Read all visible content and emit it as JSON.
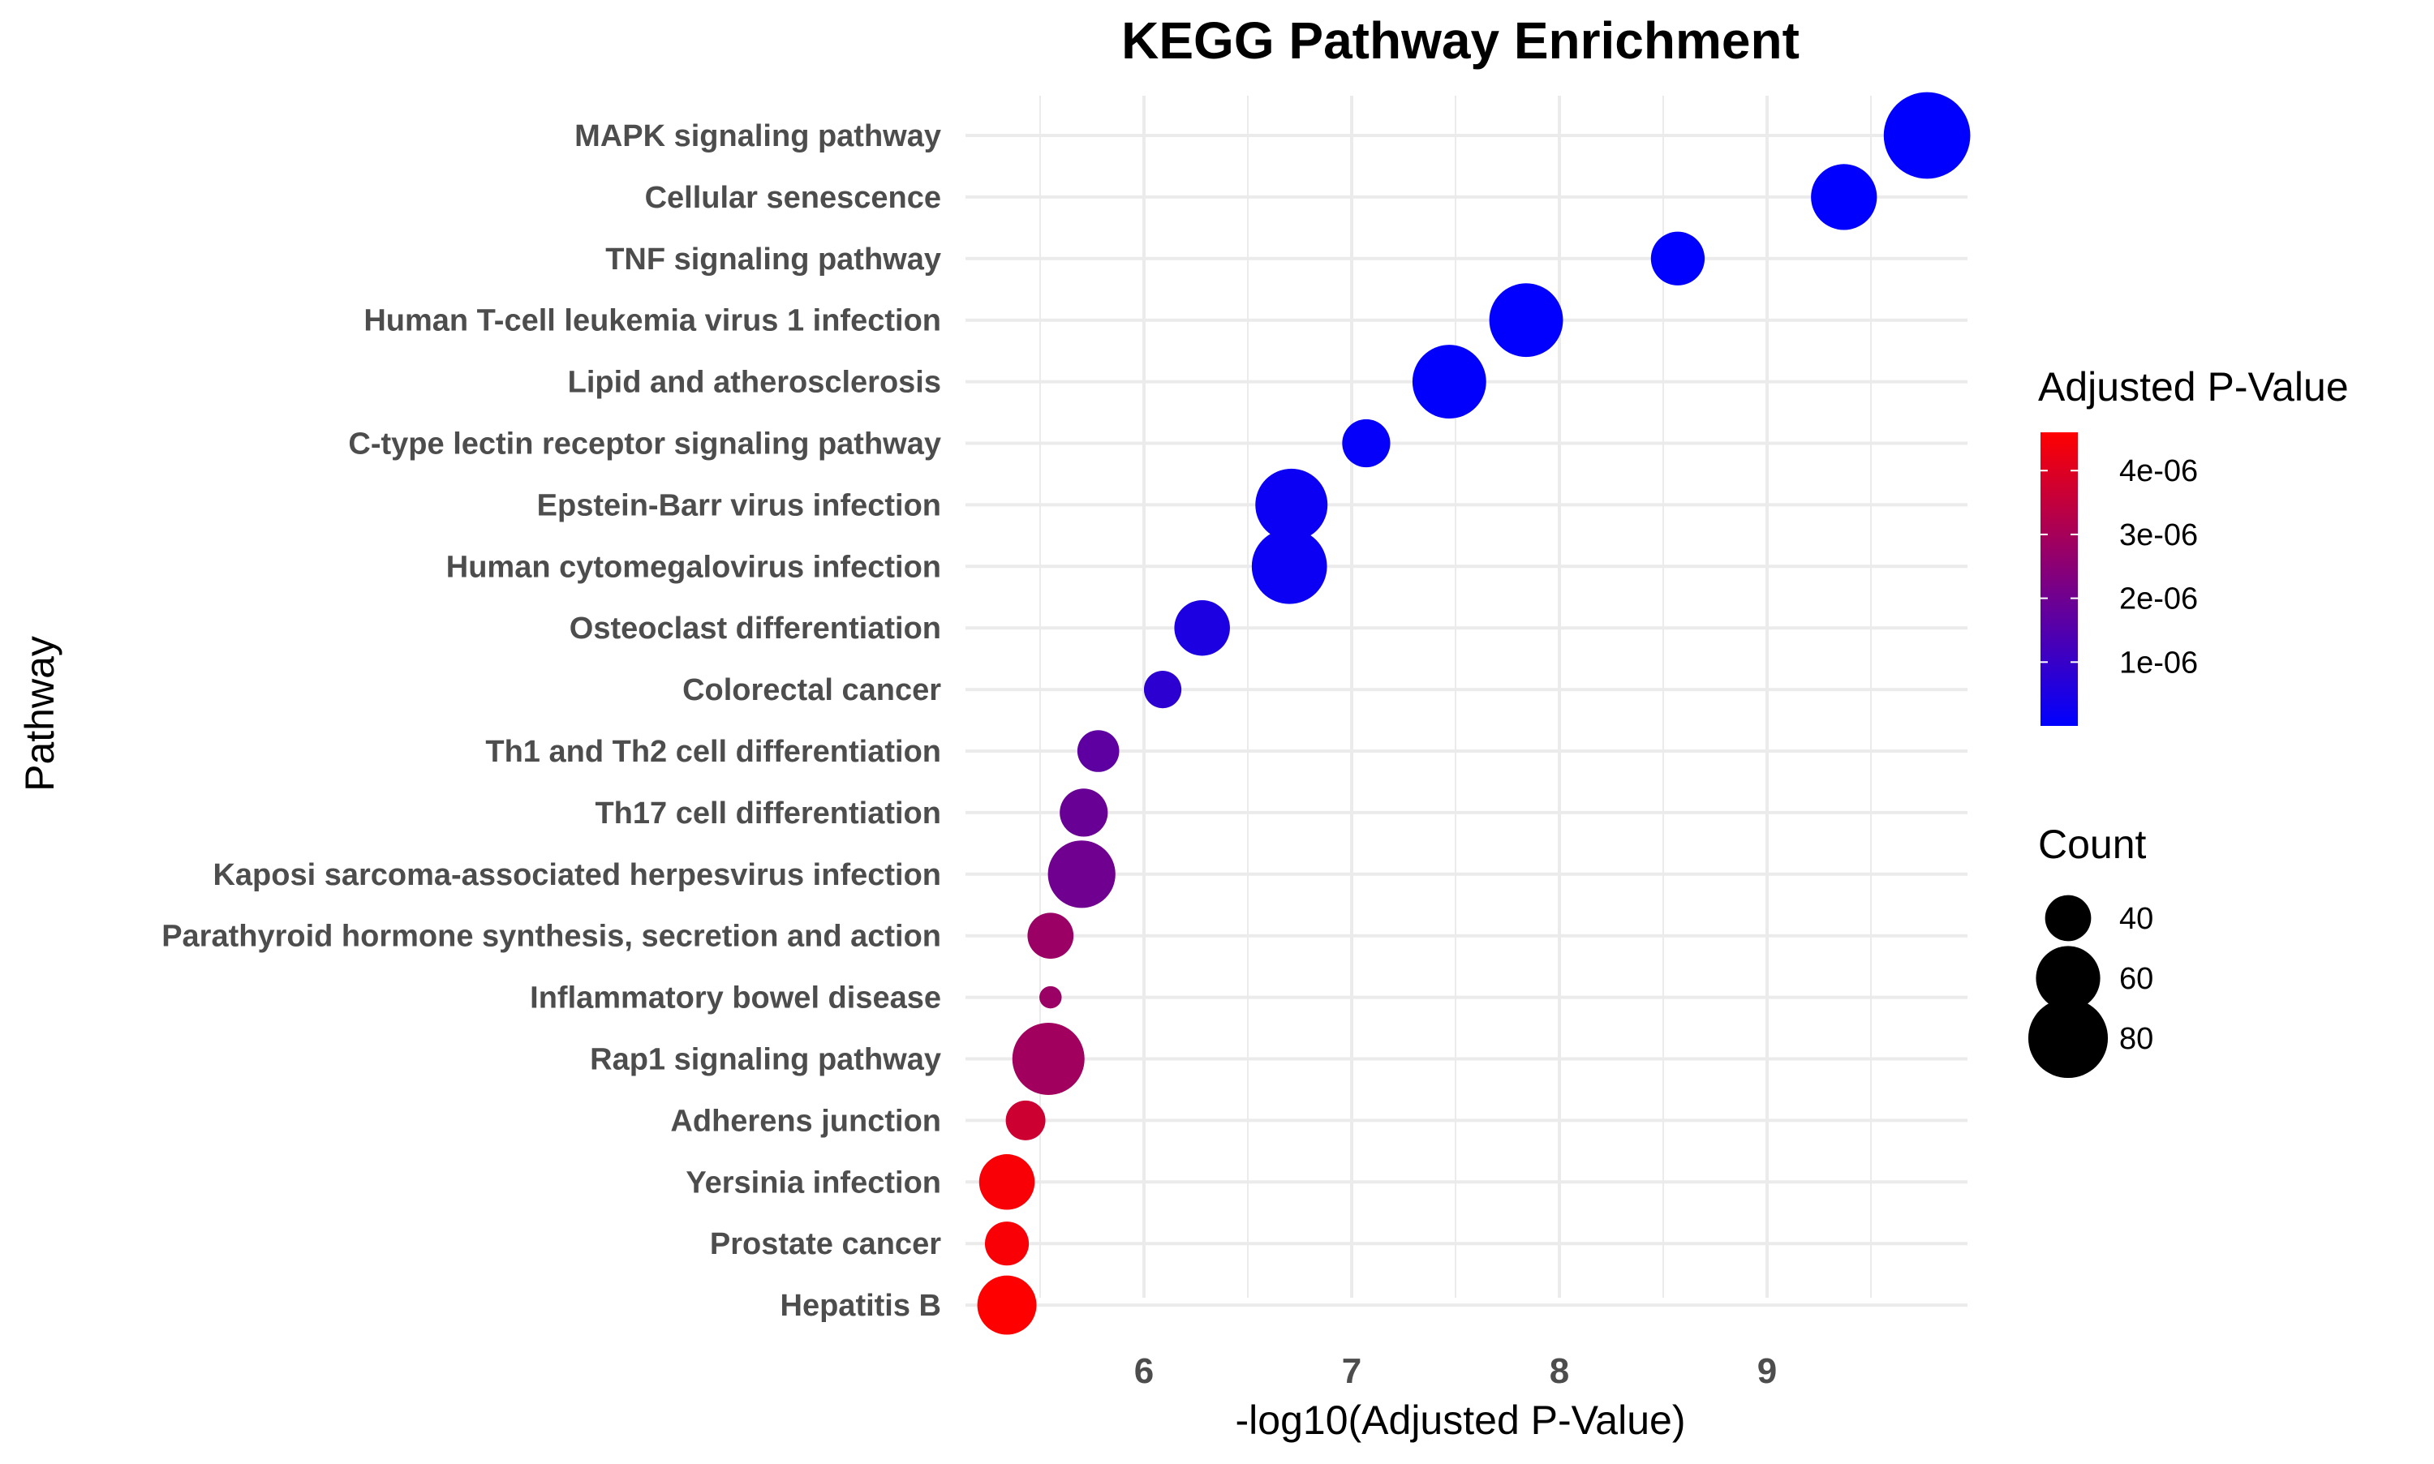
{
  "chart_data": {
    "type": "scatter",
    "title": "KEGG Pathway Enrichment",
    "xlabel": "-log10(Adjusted P-Value)",
    "ylabel": "Pathway",
    "xlim": [
      5.4,
      10.0
    ],
    "x_ticks": [
      6,
      7,
      8,
      9
    ],
    "grid": true,
    "legend_position": "right",
    "categories": [
      "MAPK signaling pathway",
      "Cellular senescence",
      "TNF signaling pathway",
      "Human T-cell leukemia virus 1 infection",
      "Lipid and atherosclerosis",
      "C-type lectin receptor signaling pathway",
      "Epstein-Barr virus infection",
      "Human cytomegalovirus infection",
      "Osteoclast differentiation",
      "Colorectal cancer",
      "Th1 and Th2 cell differentiation",
      "Th17 cell differentiation",
      "Kaposi sarcoma-associated herpesvirus infection",
      "Parathyroid hormone synthesis, secretion and action",
      "Inflammatory bowel disease",
      "Rap1 signaling pathway",
      "Adherens junction",
      "Yersinia infection",
      "Prostate cancer",
      "Hepatitis B"
    ],
    "points": [
      {
        "pathway": "MAPK signaling pathway",
        "x": 9.77,
        "count": 90,
        "padj": 1.7e-10
      },
      {
        "pathway": "Cellular senescence",
        "x": 9.37,
        "count": 62,
        "padj": 4.3e-10
      },
      {
        "pathway": "TNF signaling pathway",
        "x": 8.57,
        "count": 48,
        "padj": 2.7e-09
      },
      {
        "pathway": "Human T-cell leukemia virus 1 infection",
        "x": 7.84,
        "count": 72,
        "padj": 1.4e-08
      },
      {
        "pathway": "Lipid and atherosclerosis",
        "x": 7.47,
        "count": 72,
        "padj": 3.4e-08
      },
      {
        "pathway": "C-type lectin receptor signaling pathway",
        "x": 7.07,
        "count": 42,
        "padj": 8.5e-08
      },
      {
        "pathway": "Epstein-Barr virus infection",
        "x": 6.71,
        "count": 70,
        "padj": 2e-07
      },
      {
        "pathway": "Human cytomegalovirus infection",
        "x": 6.7,
        "count": 74,
        "padj": 2e-07
      },
      {
        "pathway": "Osteoclast differentiation",
        "x": 6.28,
        "count": 50,
        "padj": 5.3e-07
      },
      {
        "pathway": "Colorectal cancer",
        "x": 6.09,
        "count": 32,
        "padj": 8.1e-07
      },
      {
        "pathway": "Th1 and Th2 cell differentiation",
        "x": 5.78,
        "count": 36,
        "padj": 1.7e-06
      },
      {
        "pathway": "Th17 cell differentiation",
        "x": 5.71,
        "count": 42,
        "padj": 1.9e-06
      },
      {
        "pathway": "Kaposi sarcoma-associated herpesvirus infection",
        "x": 5.7,
        "count": 64,
        "padj": 2e-06
      },
      {
        "pathway": "Parathyroid hormone synthesis, secretion and action",
        "x": 5.55,
        "count": 40,
        "padj": 2.8e-06
      },
      {
        "pathway": "Inflammatory bowel disease",
        "x": 5.55,
        "count": 20,
        "padj": 2.8e-06
      },
      {
        "pathway": "Rap1 signaling pathway",
        "x": 5.54,
        "count": 70,
        "padj": 2.9e-06
      },
      {
        "pathway": "Adherens junction",
        "x": 5.43,
        "count": 34,
        "padj": 3.7e-06
      },
      {
        "pathway": "Yersinia infection",
        "x": 5.34,
        "count": 50,
        "padj": 4.5e-06
      },
      {
        "pathway": "Prostate cancer",
        "x": 5.34,
        "count": 38,
        "padj": 4.5e-06
      },
      {
        "pathway": "Hepatitis B",
        "x": 5.34,
        "count": 54,
        "padj": 4.6e-06
      }
    ],
    "color_legend": {
      "title": "Adjusted P-Value",
      "range": [
        1.7e-10,
        4.6e-06
      ],
      "ticks": [
        {
          "value": 1e-06,
          "label": "1e-06"
        },
        {
          "value": 2e-06,
          "label": "2e-06"
        },
        {
          "value": 3e-06,
          "label": "3e-06"
        },
        {
          "value": 4e-06,
          "label": "4e-06"
        }
      ],
      "low_color": "#0000ff",
      "high_color": "#ff0000"
    },
    "size_legend": {
      "title": "Count",
      "entries": [
        {
          "value": 40,
          "label": "40"
        },
        {
          "value": 60,
          "label": "60"
        },
        {
          "value": 80,
          "label": "80"
        }
      ]
    }
  }
}
